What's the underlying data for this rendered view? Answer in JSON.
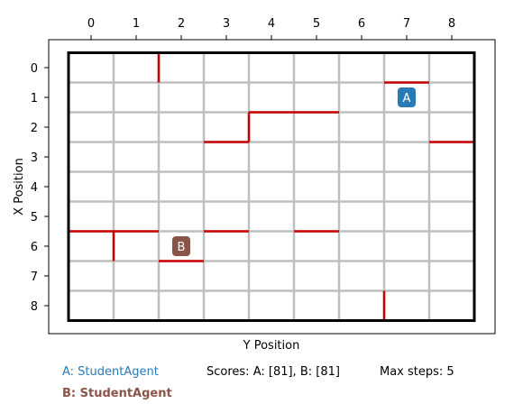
{
  "board": {
    "x_axis_label": "Y Position",
    "y_axis_label": "X Position",
    "x_ticks": [
      "0",
      "1",
      "2",
      "3",
      "4",
      "5",
      "6",
      "7",
      "8"
    ],
    "y_ticks": [
      "0",
      "1",
      "2",
      "3",
      "4",
      "5",
      "6",
      "7",
      "8"
    ],
    "grid_size": 9,
    "colors": {
      "wall": "#cc0000",
      "grid": "#bfbfbf",
      "border": "#000000",
      "agent_a": "#2a7ab4",
      "agent_b": "#8a5448"
    },
    "walls": [
      {
        "orientation": "vertical",
        "x": 1.5,
        "from": -0.5,
        "to": 0.5
      },
      {
        "orientation": "horizontal",
        "y": 0.5,
        "from": 6.5,
        "to": 7.5
      },
      {
        "orientation": "horizontal",
        "y": 1.5,
        "from": 3.5,
        "to": 5.5
      },
      {
        "orientation": "vertical",
        "x": 3.5,
        "from": 1.5,
        "to": 2.5
      },
      {
        "orientation": "horizontal",
        "y": 2.5,
        "from": 2.5,
        "to": 3.5
      },
      {
        "orientation": "horizontal",
        "y": 2.5,
        "from": 7.5,
        "to": 8.5
      },
      {
        "orientation": "horizontal",
        "y": 5.5,
        "from": -0.5,
        "to": 1.5
      },
      {
        "orientation": "vertical",
        "x": 0.5,
        "from": 5.5,
        "to": 6.5
      },
      {
        "orientation": "horizontal",
        "y": 5.5,
        "from": 2.5,
        "to": 3.5
      },
      {
        "orientation": "horizontal",
        "y": 5.5,
        "from": 4.5,
        "to": 5.5
      },
      {
        "orientation": "horizontal",
        "y": 6.5,
        "from": 1.5,
        "to": 2.5
      },
      {
        "orientation": "vertical",
        "x": 6.5,
        "from": 7.5,
        "to": 8.5
      }
    ],
    "agents": [
      {
        "label": "A",
        "col": 7,
        "row": 1,
        "color": "#2a7ab4"
      },
      {
        "label": "B",
        "col": 2,
        "row": 6,
        "color": "#8a5448"
      }
    ]
  },
  "footer": {
    "agent_a_text": "A: StudentAgent",
    "agent_b_text": "B: StudentAgent",
    "scores_text": "Scores: A: [81], B: [81]",
    "max_steps_text": "Max steps: 5"
  }
}
